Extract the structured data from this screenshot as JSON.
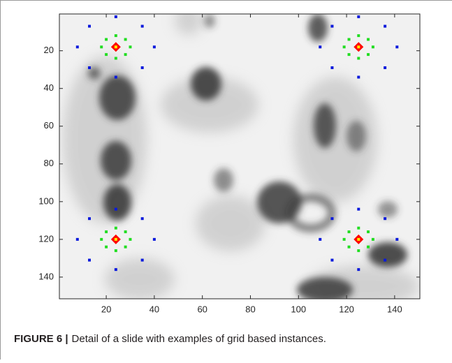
{
  "chart_data": {
    "type": "scatter",
    "xlim": [
      0.5,
      150.5
    ],
    "ylim": [
      0.5,
      151.5
    ],
    "y_reversed": true,
    "xticks": [
      20,
      40,
      60,
      80,
      100,
      120,
      140
    ],
    "yticks": [
      20,
      40,
      60,
      80,
      100,
      120,
      140
    ],
    "series": [
      {
        "color": "#ff0000",
        "marker": "diamond",
        "x": [
          24,
          125,
          24,
          125
        ],
        "y": [
          18,
          18,
          120,
          120
        ]
      },
      {
        "color": "#22dd22",
        "marker": "square",
        "x": [
          24,
          28,
          30,
          28,
          24,
          20,
          18,
          20,
          125,
          129,
          131,
          129,
          125,
          121,
          119,
          121,
          24,
          28,
          30,
          28,
          24,
          20,
          18,
          20,
          125,
          129,
          131,
          129,
          125,
          121,
          119,
          121
        ],
        "y": [
          12,
          14,
          18,
          22,
          24,
          22,
          18,
          14,
          12,
          14,
          18,
          22,
          24,
          22,
          18,
          14,
          114,
          116,
          120,
          124,
          126,
          124,
          120,
          116,
          114,
          116,
          120,
          124,
          126,
          124,
          120,
          116
        ]
      },
      {
        "color": "#0a1adc",
        "marker": "square",
        "x": [
          24,
          35,
          40,
          35,
          24,
          13,
          8,
          13,
          125,
          136,
          141,
          136,
          125,
          114,
          109,
          114,
          24,
          35,
          40,
          35,
          24,
          13,
          8,
          13,
          125,
          136,
          141,
          136,
          125,
          114,
          109,
          114
        ],
        "y": [
          2,
          7,
          18,
          29,
          34,
          29,
          18,
          7,
          2,
          7,
          18,
          29,
          34,
          29,
          18,
          7,
          104,
          109,
          120,
          131,
          136,
          131,
          120,
          109,
          104,
          109,
          120,
          131,
          136,
          131,
          120,
          109
        ]
      }
    ]
  },
  "caption": {
    "label": "FIGURE 6 |",
    "text": "Detail of a slide with examples of grid based instances."
  }
}
